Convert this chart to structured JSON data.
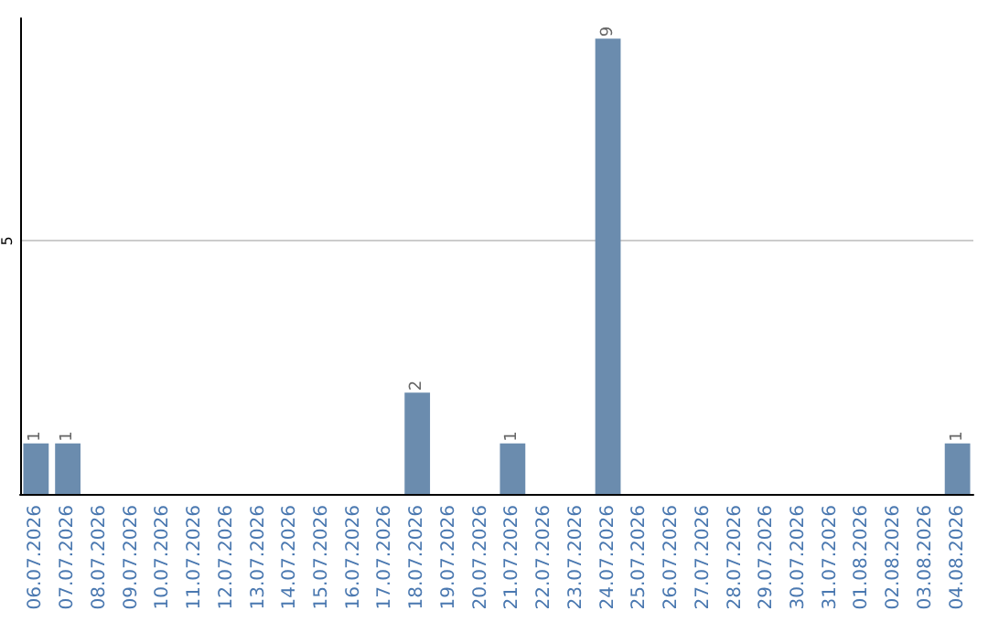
{
  "chart_data": {
    "type": "bar",
    "categories": [
      "06.07.2026",
      "07.07.2026",
      "08.07.2026",
      "09.07.2026",
      "10.07.2026",
      "11.07.2026",
      "12.07.2026",
      "13.07.2026",
      "14.07.2026",
      "15.07.2026",
      "16.07.2026",
      "17.07.2026",
      "18.07.2026",
      "19.07.2026",
      "20.07.2026",
      "21.07.2026",
      "22.07.2026",
      "23.07.2026",
      "24.07.2026",
      "25.07.2026",
      "26.07.2026",
      "27.07.2026",
      "28.07.2026",
      "29.07.2026",
      "30.07.2026",
      "31.07.2026",
      "01.08.2026",
      "02.08.2026",
      "03.08.2026",
      "04.08.2026"
    ],
    "values": [
      1,
      1,
      0,
      0,
      0,
      0,
      0,
      0,
      0,
      0,
      0,
      0,
      2,
      0,
      0,
      1,
      0,
      0,
      9,
      0,
      0,
      0,
      0,
      0,
      0,
      0,
      0,
      0,
      0,
      1
    ],
    "color": "#6b8cae",
    "value_labels": [
      "1",
      "1",
      null,
      null,
      null,
      null,
      null,
      null,
      null,
      null,
      null,
      null,
      "2",
      null,
      null,
      "1",
      null,
      null,
      "9",
      null,
      null,
      null,
      null,
      null,
      null,
      null,
      null,
      null,
      null,
      "1"
    ],
    "ylim": [
      0,
      9.4
    ],
    "yticks": [
      5
    ],
    "grid": "y"
  }
}
